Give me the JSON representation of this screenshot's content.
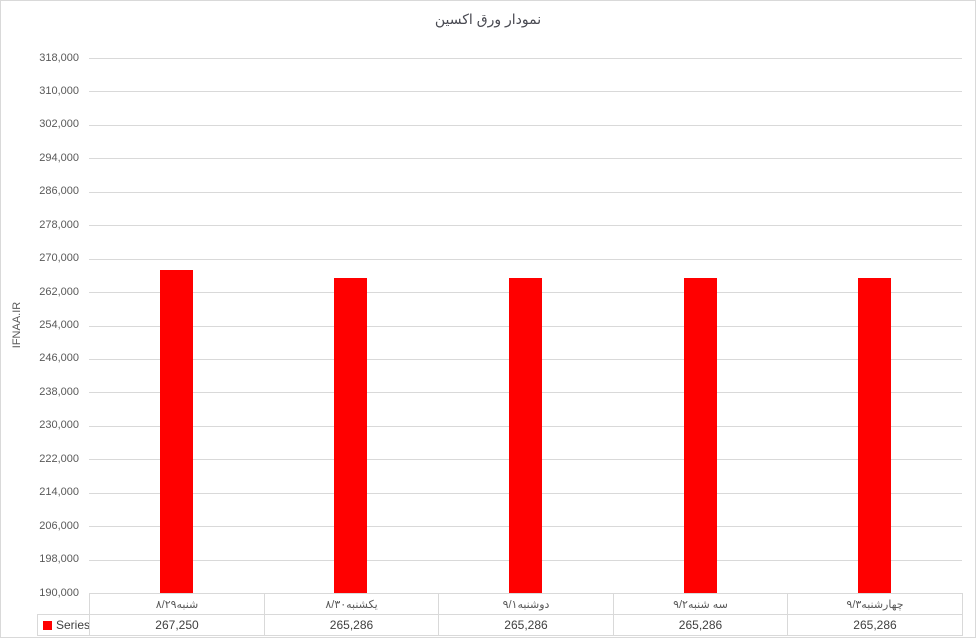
{
  "title": "نمودار ورق اکسین",
  "y_axis": {
    "title": "IFNAA.IR",
    "tick_labels": [
      "318,000",
      "310,000",
      "302,000",
      "294,000",
      "286,000",
      "278,000",
      "270,000",
      "262,000",
      "254,000",
      "246,000",
      "238,000",
      "230,000",
      "222,000",
      "214,000",
      "206,000",
      "198,000",
      "190,000"
    ]
  },
  "legend": {
    "label": "Series1",
    "marker_color": "#ff0000"
  },
  "chart_data": {
    "type": "bar",
    "title": "نمودار ورق اکسین",
    "ylabel": "IFNAA.IR",
    "xlabel": "",
    "categories": [
      "شنبه۸/۲۹",
      "یکشنبه۸/۳۰",
      "دوشنبه۹/۱",
      "سه شنبه۹/۲",
      "چهارشنبه۹/۳"
    ],
    "series": [
      {
        "name": "Series1",
        "color": "#ff0000",
        "values": [
          267250,
          265286,
          265286,
          265286,
          265286
        ],
        "value_labels": [
          "267,250",
          "265,286",
          "265,286",
          "265,286",
          "265,286"
        ]
      }
    ],
    "ylim": [
      190000,
      318000
    ],
    "ytick_step": 8000,
    "grid": true,
    "bar_color": "#ff0000",
    "gridline_color": "#d9d9d9",
    "legend_position": "bottom-left-of-data-table",
    "data_table": true
  }
}
